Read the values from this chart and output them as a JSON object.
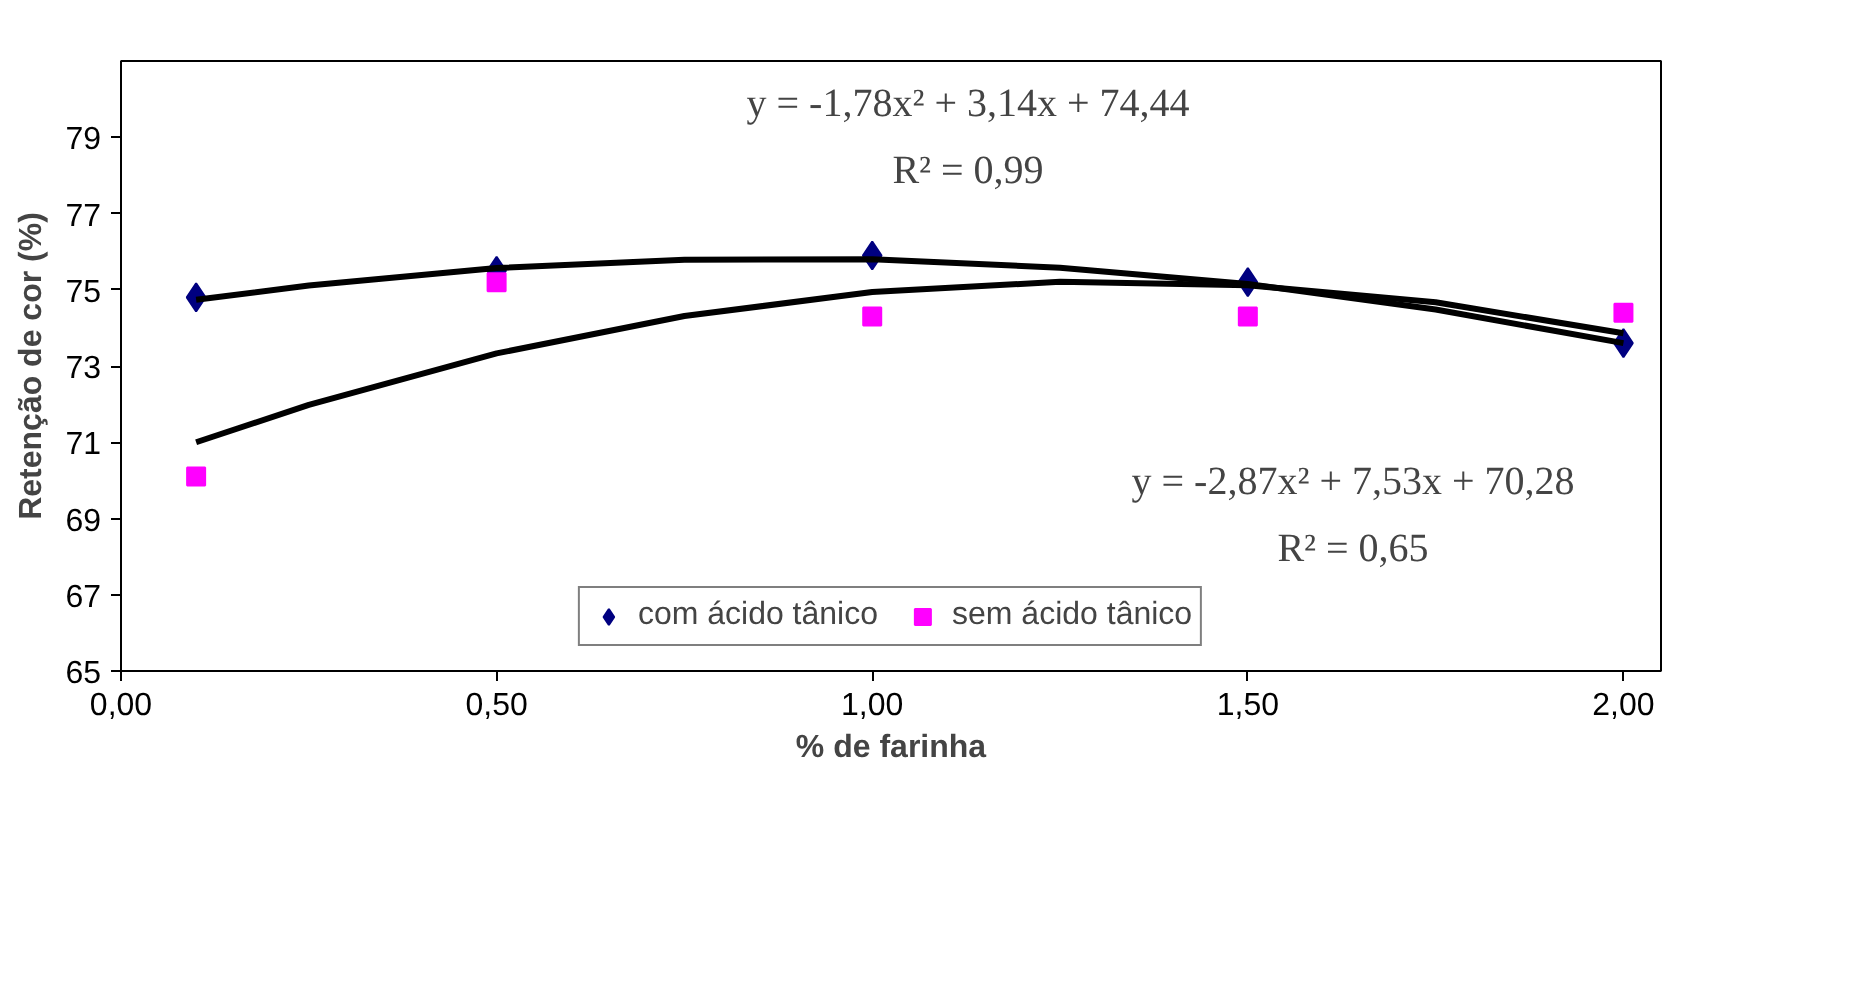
{
  "chart_data": {
    "type": "scatter",
    "xlabel": "% de farinha",
    "ylabel": "Retenção de cor (%)",
    "xlim": [
      0,
      2.05
    ],
    "xticks": [
      {
        "value": 0,
        "label": "0,00"
      },
      {
        "value": 0.5,
        "label": "0,50"
      },
      {
        "value": 1,
        "label": "1,00"
      },
      {
        "value": 1.5,
        "label": "1,50"
      },
      {
        "value": 2,
        "label": "2,00"
      }
    ],
    "ylim": [
      65,
      81
    ],
    "yticks": [
      65,
      67,
      69,
      71,
      73,
      75,
      77,
      79
    ],
    "grid": false,
    "legend": "bottom",
    "x": [
      0.1,
      0.5,
      1.0,
      1.5,
      2.0
    ],
    "series": [
      {
        "name": "com ácido tânico",
        "color": "#000080",
        "marker": "diamond",
        "values": [
          74.8,
          75.5,
          75.9,
          75.2,
          73.6
        ]
      },
      {
        "name": "sem ácido tânico",
        "color": "#ff00ff",
        "marker": "square",
        "values": [
          70.1,
          75.2,
          74.3,
          74.3,
          74.4
        ]
      },
      {
        "type": "line",
        "color": "#000000",
        "marker": "none",
        "x": [
          0.1,
          0.25,
          0.5,
          0.75,
          1.0,
          1.25,
          1.5,
          1.75,
          2.0
        ],
        "values": [
          74.74,
          75.11,
          75.57,
          75.79,
          75.8,
          75.58,
          75.15,
          74.48,
          73.6
        ]
      },
      {
        "type": "line",
        "color": "#000000",
        "marker": "none",
        "x": [
          0.1,
          0.25,
          0.5,
          0.75,
          1.0,
          1.25,
          1.5,
          1.75,
          2.0
        ],
        "values": [
          71.0,
          71.98,
          73.33,
          74.31,
          74.94,
          75.21,
          75.12,
          74.67,
          73.86
        ]
      }
    ],
    "annotations": [
      "y = -1,78x² + 3,14x + 74,44",
      "R² = 0,99",
      "y = -2,87x² + 7,53x + 70,28",
      "R² = 0,65"
    ]
  }
}
